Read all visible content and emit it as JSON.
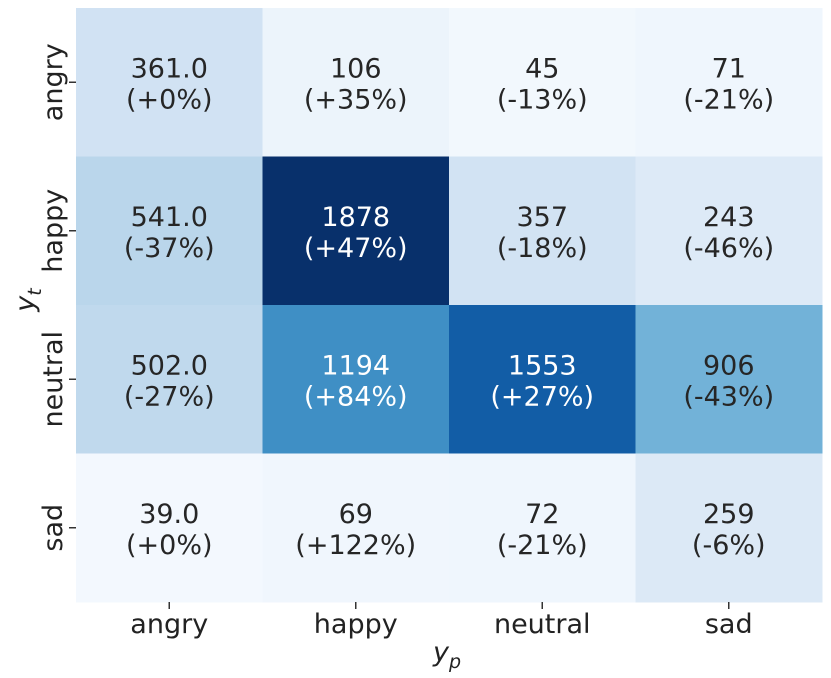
{
  "chart_data": {
    "type": "heatmap",
    "title": "",
    "xlabel": "y_p",
    "ylabel": "y_t",
    "xlabel_main": "y",
    "xlabel_sub": "p",
    "ylabel_main": "y",
    "ylabel_sub": "t",
    "x_categories": [
      "angry",
      "happy",
      "neutral",
      "sad"
    ],
    "y_categories": [
      "angry",
      "happy",
      "neutral",
      "sad"
    ],
    "colormap": "Blues",
    "vmin": 0,
    "vmax": 1878,
    "values": [
      [
        361,
        106,
        45,
        71
      ],
      [
        541,
        1878,
        357,
        243
      ],
      [
        502,
        1194,
        1553,
        906
      ],
      [
        39,
        69,
        72,
        259
      ]
    ],
    "value_labels": [
      [
        "361.0",
        "106",
        "45",
        "71"
      ],
      [
        "541.0",
        "1878",
        "357",
        "243"
      ],
      [
        "502.0",
        "1194",
        "1553",
        "906"
      ],
      [
        "39.0",
        "69",
        "72",
        "259"
      ]
    ],
    "change_labels": [
      [
        "(+0%)",
        "(+35%)",
        "(-13%)",
        "(-21%)"
      ],
      [
        "(-37%)",
        "(+47%)",
        "(-18%)",
        "(-46%)"
      ],
      [
        "(-27%)",
        "(+84%)",
        "(+27%)",
        "(-43%)"
      ],
      [
        "(+0%)",
        "(+122%)",
        "(-21%)",
        "(-6%)"
      ]
    ],
    "grid": false,
    "colorbar": false
  }
}
